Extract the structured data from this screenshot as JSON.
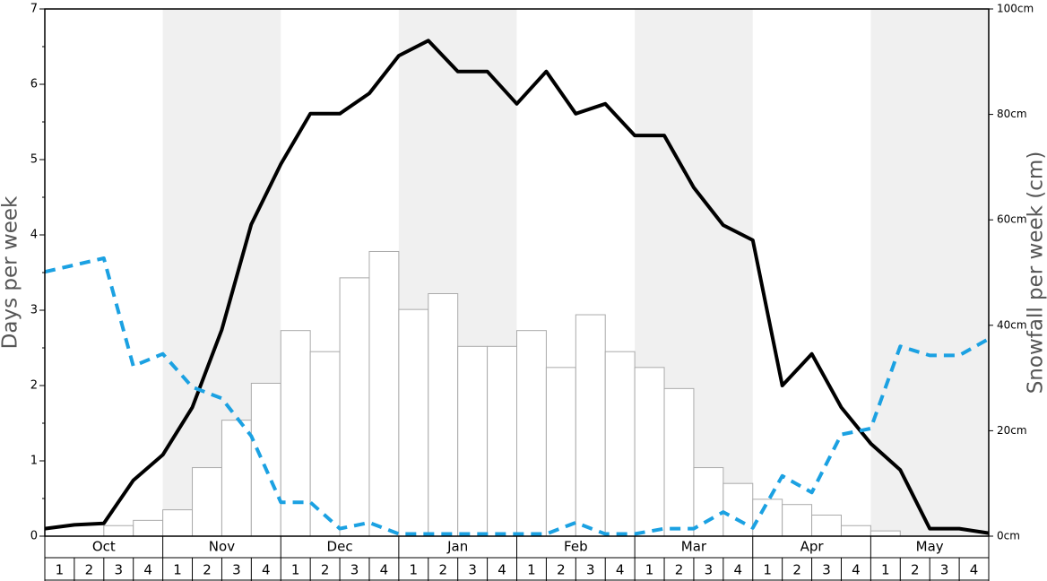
{
  "chart_data": {
    "type": "bar-line",
    "y_label": "Days per week",
    "y2_label": "Snowfall per week (cm)",
    "months": [
      "Oct",
      "Nov",
      "Dec",
      "Jan",
      "Feb",
      "Mar",
      "Apr",
      "May"
    ],
    "weeks": [
      "1",
      "2",
      "3",
      "4"
    ],
    "ylim": [
      0,
      7
    ],
    "yticks": [
      0,
      1,
      2,
      3,
      4,
      5,
      6,
      7
    ],
    "y2lim": [
      0,
      100
    ],
    "y2ticks": [
      {
        "value": 0,
        "label": "0cm"
      },
      {
        "value": 20,
        "label": "20cm"
      },
      {
        "value": 40,
        "label": "40cm"
      },
      {
        "value": 60,
        "label": "60cm"
      },
      {
        "value": 80,
        "label": "80cm"
      },
      {
        "value": 100,
        "label": "100cm"
      }
    ],
    "band_color": "#f0f0f0",
    "bars": {
      "axis": "y2",
      "color": "#ffffff",
      "stroke": "#aaaaaa",
      "values": [
        0,
        0,
        2,
        3,
        5,
        13,
        22,
        29,
        39,
        35,
        49,
        54,
        43,
        46,
        36,
        36,
        39,
        32,
        42,
        35,
        32,
        28,
        13,
        10,
        7,
        6,
        4,
        2,
        1,
        0,
        0,
        0
      ]
    },
    "lines": [
      {
        "color": "#000000",
        "dashed": false,
        "values": [
          0.1,
          0.15,
          0.17,
          0.74,
          1.08,
          1.71,
          2.74,
          4.14,
          4.94,
          5.61,
          5.61,
          5.88,
          6.38,
          6.58,
          6.17,
          6.17,
          5.74,
          6.17,
          5.61,
          5.74,
          5.32,
          5.32,
          4.63,
          4.13,
          3.93,
          2.0,
          2.42,
          1.71,
          1.23,
          0.88,
          0.1,
          0.1,
          0.04
        ]
      },
      {
        "color": "#1ba1e2",
        "dashed": true,
        "values": [
          3.51,
          3.6,
          3.69,
          2.26,
          2.42,
          1.98,
          1.83,
          1.33,
          0.45,
          0.45,
          0.1,
          0.18,
          0.03,
          0.03,
          0.03,
          0.03,
          0.03,
          0.03,
          0.18,
          0.03,
          0.03,
          0.1,
          0.1,
          0.32,
          0.11,
          0.8,
          0.58,
          1.35,
          1.43,
          2.52,
          2.4,
          2.4,
          2.62
        ]
      }
    ]
  }
}
